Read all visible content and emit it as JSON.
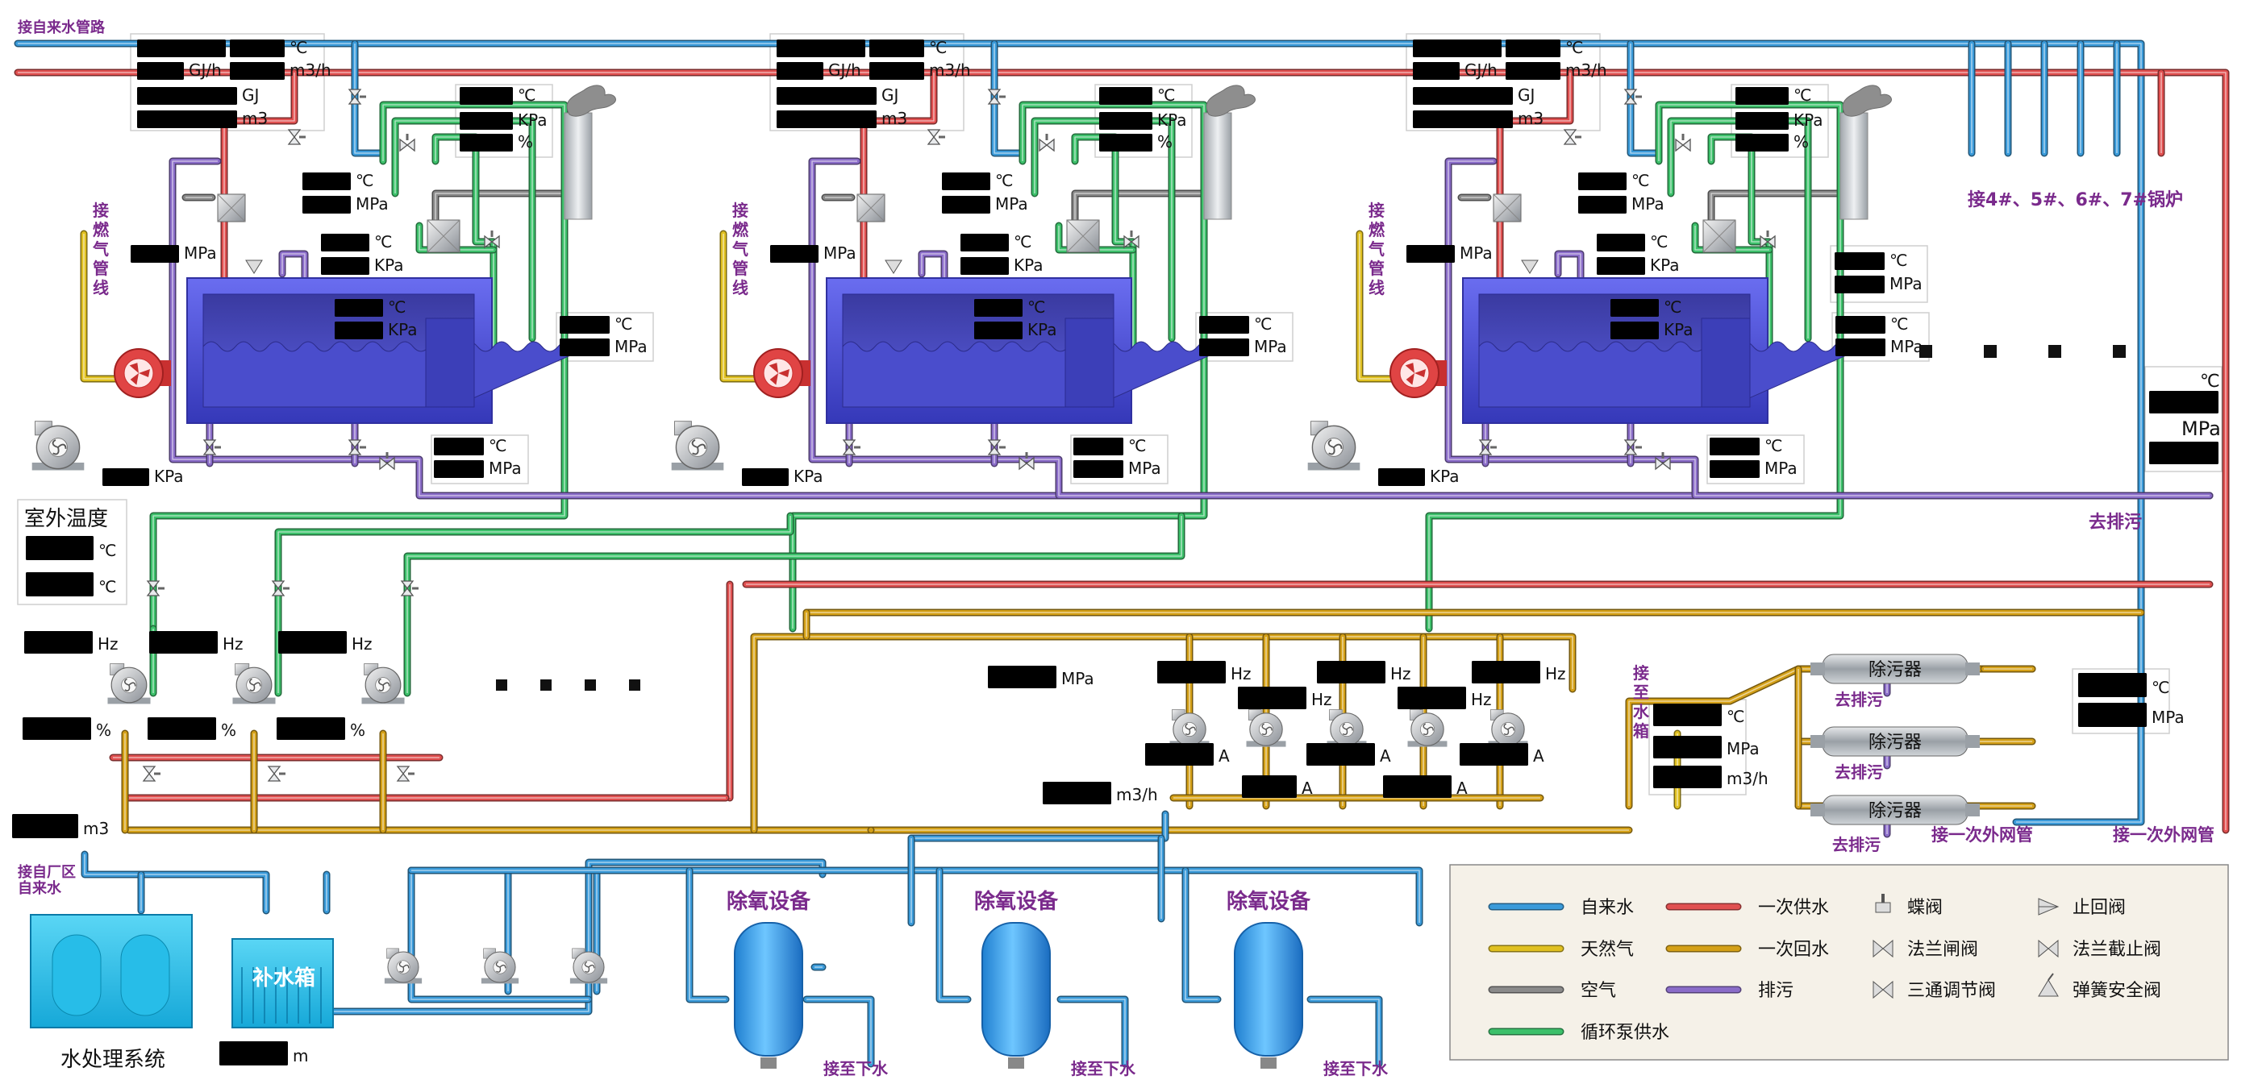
{
  "labels": {
    "tap_water_inlet": "接自来水管路",
    "gas_inlet": "接燃气管线",
    "to_boilers": "接4#、5#、6#、7#锅炉",
    "to_sewage": "去排污",
    "outdoor_temp": "室外温度",
    "from_plant_water": "接自厂区自来水",
    "water_treatment": "水处理系统",
    "makeup_tank": "补水箱",
    "deaerator": "除氧设备",
    "to_drain": "接至下水",
    "to_water_tank": "接至水箱",
    "separator": "除污器",
    "separator_sewage": "去排污",
    "primary_network_a": "接一次外网管",
    "primary_network_b": "接一次外网管",
    "ellipsis": "■ ■ ■ ■"
  },
  "units": {
    "c": "℃",
    "gj_h": "GJ/h",
    "m3_h": "m3/h",
    "gj": "GJ",
    "m3": "m3",
    "kpa": "KPa",
    "pct": "%",
    "mpa": "MPa",
    "hz": "Hz",
    "a": "A",
    "m": "m"
  },
  "legend": {
    "pipes": [
      {
        "label": "自来水",
        "color": "#3a9ad9"
      },
      {
        "label": "一次供水",
        "color": "#e05050"
      },
      {
        "label": "天然气",
        "color": "#e0c020"
      },
      {
        "label": "一次回水",
        "color": "#d4a017"
      },
      {
        "label": "空气",
        "color": "#8a8a8a"
      },
      {
        "label": "排污",
        "color": "#8a6cc8"
      },
      {
        "label": "循环泵供水",
        "color": "#3cc06a"
      }
    ],
    "valves": [
      {
        "label": "蝶阀",
        "icon": "butterfly-valve"
      },
      {
        "label": "止回阀",
        "icon": "check-valve"
      },
      {
        "label": "法兰闸阀",
        "icon": "flange-gate-valve"
      },
      {
        "label": "法兰截止阀",
        "icon": "flange-globe-valve"
      },
      {
        "label": "三通调节阀",
        "icon": "three-way-valve"
      },
      {
        "label": "弹簧安全阀",
        "icon": "spring-safety-valve"
      }
    ]
  },
  "colors": {
    "tap_water": "#3a9ad9",
    "primary_supply": "#e05050",
    "gas": "#e0c020",
    "primary_return": "#d4a017",
    "air": "#8a8a8a",
    "sewage": "#8a6cc8",
    "circ_supply": "#3cc06a",
    "boiler": "#5558e0",
    "tank": "#2a9de8"
  }
}
